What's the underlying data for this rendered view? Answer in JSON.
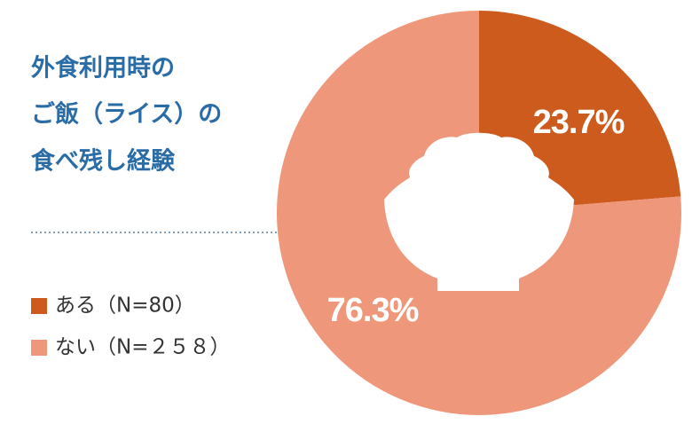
{
  "chart_data": {
    "type": "donut",
    "title": [
      "外食利用時の",
      "ご飯（ライス）の",
      "食べ残し経験"
    ],
    "categories": [
      "ある（N=80）",
      "ない（N=２５８）"
    ],
    "values": [
      23.7,
      76.3
    ],
    "value_labels": [
      "23.7%",
      "76.3%"
    ],
    "colors": [
      "#cc5b1d",
      "#ee977a"
    ]
  }
}
